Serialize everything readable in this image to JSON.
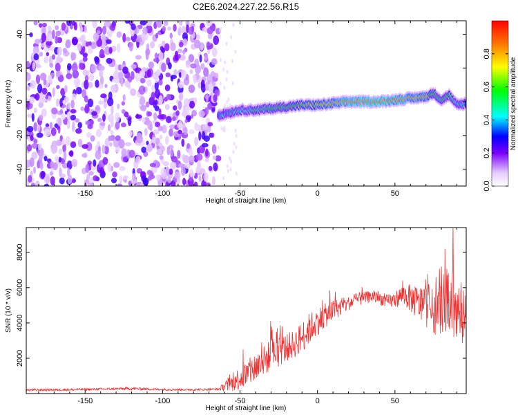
{
  "title": "C2E6.2024.227.22.56.R15",
  "chart_data": [
    {
      "type": "heatmap",
      "xlabel": "Height of straight line (km)",
      "ylabel": "Frequency (Hz)",
      "xlim": [
        -188,
        96
      ],
      "ylim": [
        -50,
        48
      ],
      "x_ticks": [
        -150,
        -100,
        -50,
        0,
        50
      ],
      "y_ticks": [
        -40,
        -20,
        0,
        20,
        40
      ],
      "noise_region_x": [
        -188,
        -64
      ],
      "signal_ridge": {
        "x": [
          -64,
          -50,
          -40,
          -30,
          -20,
          -10,
          0,
          10,
          20,
          30,
          40,
          50,
          60,
          70,
          75,
          80,
          85,
          90,
          96
        ],
        "y": [
          -8,
          -5,
          -5,
          -4,
          -3,
          -2,
          -2,
          -1,
          0,
          0,
          0,
          1,
          2,
          3,
          5,
          1,
          4,
          -2,
          -1
        ],
        "amplitude": [
          0.35,
          0.45,
          0.5,
          0.55,
          0.6,
          0.65,
          0.7,
          0.75,
          0.85,
          0.9,
          0.9,
          0.85,
          0.8,
          0.75,
          0.6,
          0.5,
          0.55,
          0.45,
          0.4
        ]
      },
      "colorbar": {
        "label": "Normalized spectral amplitude",
        "ticks": [
          0.0,
          0.2,
          0.4,
          0.6,
          0.8
        ],
        "range": [
          0,
          1
        ]
      },
      "grid": false
    },
    {
      "type": "line",
      "xlabel": "Height of straight line (km)",
      "ylabel": "SNR (10 * v/v)",
      "xlim": [
        -188,
        96
      ],
      "ylim": [
        0,
        9400
      ],
      "x_ticks": [
        -150,
        -100,
        -50,
        0,
        50
      ],
      "y_ticks": [
        2000,
        4000,
        6000,
        8000
      ],
      "series": [
        {
          "color": "#ee3333",
          "x": [
            -188,
            -160,
            -140,
            -120,
            -100,
            -80,
            -64,
            -55,
            -50,
            -45,
            -40,
            -35,
            -30,
            -25,
            -20,
            -15,
            -10,
            -5,
            0,
            5,
            10,
            15,
            20,
            25,
            30,
            35,
            40,
            45,
            50,
            55,
            60,
            65,
            70,
            75,
            80,
            85,
            88,
            90,
            96
          ],
          "values": [
            200,
            220,
            250,
            280,
            230,
            220,
            250,
            600,
            900,
            1100,
            1500,
            1800,
            2200,
            2400,
            2600,
            2800,
            3200,
            3700,
            4100,
            4400,
            4700,
            4900,
            5100,
            5300,
            5400,
            5500,
            5400,
            5200,
            5300,
            5600,
            5400,
            5100,
            5000,
            4600,
            5000,
            5600,
            5200,
            4300,
            4200
          ],
          "spread": [
            60,
            70,
            70,
            80,
            60,
            60,
            60,
            500,
            700,
            800,
            900,
            900,
            900,
            900,
            800,
            800,
            900,
            900,
            800,
            700,
            600,
            500,
            400,
            400,
            350,
            350,
            350,
            400,
            450,
            600,
            800,
            1000,
            1200,
            1300,
            1600,
            2000,
            2400,
            1800,
            1600
          ]
        }
      ],
      "grid": false
    }
  ]
}
